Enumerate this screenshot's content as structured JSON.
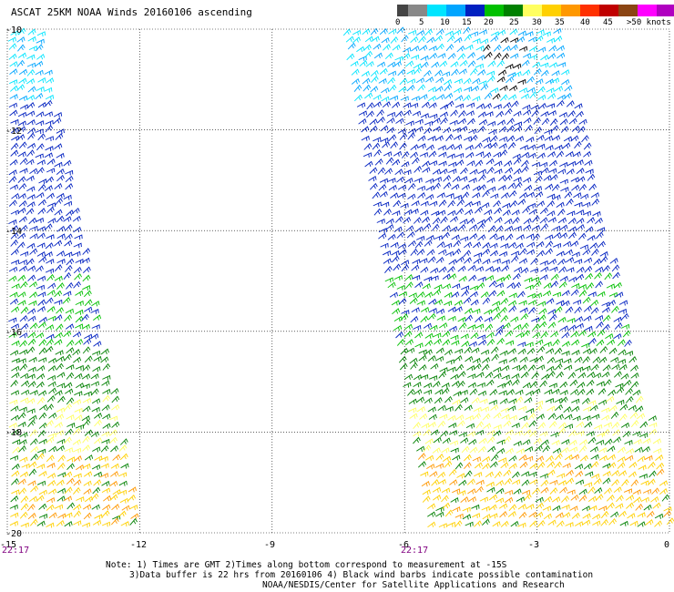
{
  "title": "ASCAT 25KM NOAA Winds 20160106 ascending",
  "legend": {
    "labels": [
      "0",
      "5",
      "10",
      "15",
      "20",
      "25",
      "30",
      "35",
      "40",
      "45",
      ">50 knots"
    ],
    "colors": [
      "#444444",
      "#888888",
      "#00e5ff",
      "#00a5ff",
      "#0020c0",
      "#00c000",
      "#008000",
      "#ffff60",
      "#ffd000",
      "#ff9800",
      "#ff3000",
      "#c00000",
      "#8b4513",
      "#ff00ff",
      "#b000c0",
      "#7000a0"
    ]
  },
  "map": {
    "lat_labels": [
      "-10",
      "-12",
      "-14",
      "-16",
      "-18",
      "-20"
    ],
    "lon_labels": [
      "-15",
      "-12",
      "-9",
      "-6",
      "-3",
      "0"
    ],
    "lat_range": [
      -20,
      -10
    ],
    "lon_range": [
      -15,
      0
    ],
    "grid": "dotted"
  },
  "times": [
    "22:17",
    "22:17"
  ],
  "notes": {
    "line1": "Note: 1) Times are GMT 2)Times along bottom correspond to measurement at -15S",
    "line2": "3)Data buffer is 22 hrs from 20160106 4) Black wind barbs indicate possible contamination",
    "line3": "NOAA/NESDIS/Center for Satellite Applications and Research"
  }
}
